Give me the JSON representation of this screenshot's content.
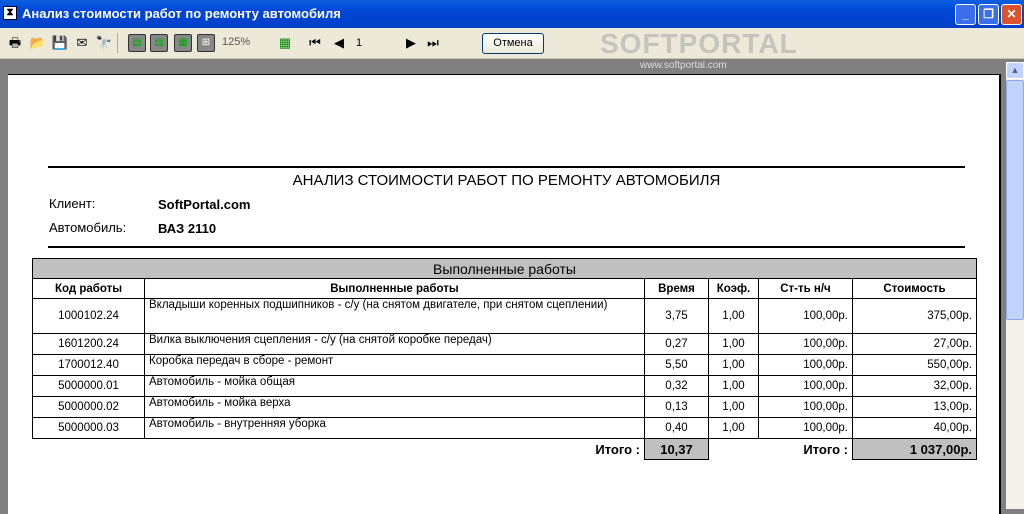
{
  "window": {
    "title": "Анализ стоимости работ по ремонту автомобиля"
  },
  "toolbar": {
    "zoom": "125%",
    "page": "1",
    "cancel_label": "Отмена"
  },
  "watermark": {
    "logo": "SOFTPORTAL",
    "url": "www.softportal.com"
  },
  "report": {
    "title": "АНАЛИЗ СТОИМОСТИ РАБОТ ПО РЕМОНТУ АВТОМОБИЛЯ",
    "client_label": "Клиент:",
    "client": "SoftPortal.com",
    "car_label": "Автомобиль:",
    "car": "ВАЗ 2110",
    "section": "Выполненные работы",
    "headers": [
      "Код работы",
      "Выполненные работы",
      "Время",
      "Коэф.",
      "Ст-ть н/ч",
      "Стоимость"
    ],
    "rows": [
      [
        "1000102.24",
        "Вкладыши коренных подшипников - с/у (на снятом двигателе, при снятом сцеплении)",
        "3,75",
        "1,00",
        "100,00р.",
        "375,00р."
      ],
      [
        "1601200.24",
        "Вилка выключения сцепления - с/у (на снятой коробке передач)",
        "0,27",
        "1,00",
        "100,00р.",
        "27,00р."
      ],
      [
        "1700012.40",
        "Коробка передач в сборе - ремонт",
        "5,50",
        "1,00",
        "100,00р.",
        "550,00р."
      ],
      [
        "5000000.01",
        "Автомобиль - мойка общая",
        "0,32",
        "1,00",
        "100,00р.",
        "32,00р."
      ],
      [
        "5000000.02",
        "Автомобиль - мойка верха",
        "0,13",
        "1,00",
        "100,00р.",
        "13,00р."
      ],
      [
        "5000000.03",
        "Автомобиль - внутренняя уборка",
        "0,40",
        "1,00",
        "100,00р.",
        "40,00р."
      ]
    ],
    "total_label": "Итого :",
    "total_time": "10,37",
    "total_cost": "1 037,00р."
  }
}
